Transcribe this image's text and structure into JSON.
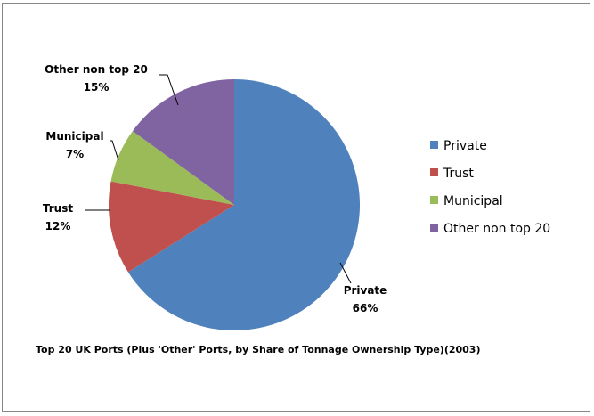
{
  "chart_data": {
    "type": "pie",
    "title": "Top 20 UK Ports (Plus 'Other' Ports, by Share of Tonnage Ownership Type)(2003)",
    "legend_position": "right",
    "slices": [
      {
        "name": "Private",
        "value": 66,
        "label": "66%",
        "color": "#4F81BD"
      },
      {
        "name": "Trust",
        "value": 12,
        "label": "12%",
        "color": "#C0504D"
      },
      {
        "name": "Municipal",
        "value": 7,
        "label": "7%",
        "color": "#9BBB59"
      },
      {
        "name": "Other non top 20",
        "value": 15,
        "label": "15%",
        "color": "#8064A2"
      }
    ]
  }
}
